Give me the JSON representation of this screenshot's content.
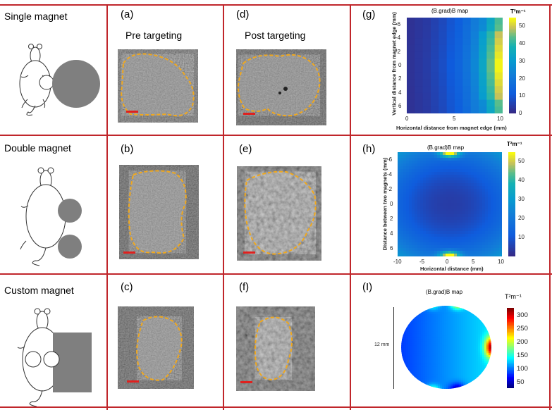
{
  "rows": [
    {
      "label": "Single magnet"
    },
    {
      "label": "Double magnet"
    },
    {
      "label": "Custom magnet"
    }
  ],
  "columns": {
    "pre": "Pre targeting",
    "post": "Post targeting"
  },
  "panels": {
    "a": "(a)",
    "b": "(b)",
    "c": "(c)",
    "d": "(d)",
    "e": "(e)",
    "f": "(f)",
    "g": "(g)",
    "h": "(h)",
    "i": "(I)"
  },
  "colors": {
    "grid": "#c0262b",
    "outline": "#f0a81e",
    "scale_bar": "#e0201e",
    "magnet": "#7f7f7f"
  },
  "chart_data": [
    {
      "type": "heatmap",
      "title": "(B.grad)B map",
      "xlabel": "Horizontal distance from magnet edge (mm)",
      "ylabel": "Vertical distance from magnet edge (mm)",
      "xlim": [
        0,
        10
      ],
      "ylim": [
        -7,
        7
      ],
      "xticks": [
        "0",
        "5",
        "10"
      ],
      "yticks": [
        "-6",
        "-4",
        "-2",
        "0",
        "2",
        "4",
        "6"
      ],
      "colorbar": {
        "unit": "T²m⁻¹",
        "ticks": [
          "0",
          "10",
          "20",
          "30",
          "40",
          "50"
        ],
        "range": [
          0,
          55
        ]
      },
      "column_values": [
        2,
        3,
        4,
        6,
        8,
        11,
        14,
        19,
        25,
        34,
        45,
        55
      ]
    },
    {
      "type": "heatmap",
      "title": "(B.grad)B map",
      "xlabel": "Horizontal distance (mm)",
      "ylabel": "Distance between two magnets (mm)",
      "xlim": [
        -10,
        10
      ],
      "ylim": [
        -7,
        7
      ],
      "xticks": [
        "-10",
        "-5",
        "0",
        "5",
        "10"
      ],
      "yticks": [
        "-6",
        "-4",
        "-2",
        "0",
        "2",
        "4",
        "6"
      ],
      "colorbar": {
        "unit": "T²m⁻¹",
        "ticks": [
          "10",
          "20",
          "30",
          "40",
          "50"
        ],
        "range": [
          0,
          55
        ]
      }
    },
    {
      "type": "heatmap",
      "title": "(B.grad)B map",
      "scale_label": "12 mm",
      "colorbar": {
        "unit": "T²m⁻¹",
        "ticks": [
          "50",
          "100",
          "150",
          "200",
          "250",
          "300"
        ],
        "range": [
          30,
          330
        ]
      }
    }
  ]
}
